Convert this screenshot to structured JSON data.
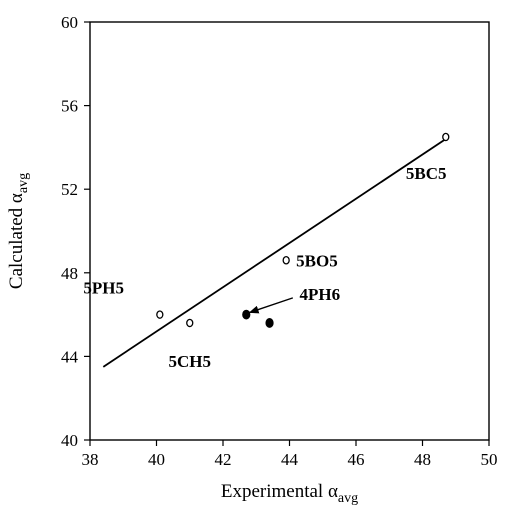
{
  "chart_data": {
    "type": "scatter",
    "xlabel": "Experimental α",
    "xlabel_sub": "avg",
    "ylabel": "Calculated α",
    "ylabel_sub": "avg",
    "xlim": [
      38,
      50
    ],
    "ylim": [
      40,
      60
    ],
    "x_ticks": [
      38,
      40,
      42,
      44,
      46,
      48,
      50
    ],
    "y_ticks": [
      40,
      44,
      48,
      52,
      56,
      60
    ],
    "grid": false,
    "legend": "none",
    "series": [
      {
        "marker": "open-circle",
        "points": [
          {
            "x": 40.1,
            "y": 46.0
          },
          {
            "x": 41.0,
            "y": 45.6
          },
          {
            "x": 43.9,
            "y": 48.6
          },
          {
            "x": 48.7,
            "y": 54.5
          }
        ]
      },
      {
        "marker": "filled-circle",
        "points": [
          {
            "x": 42.7,
            "y": 46.0
          },
          {
            "x": 43.4,
            "y": 45.6
          }
        ]
      }
    ],
    "fit_line": {
      "x1": 38.4,
      "y1": 43.5,
      "x2": 48.7,
      "y2": 54.4
    },
    "annotations": [
      {
        "text": "5PH5",
        "x": 37.8,
        "y": 47.0,
        "anchor": "start"
      },
      {
        "text": "5CH5",
        "x": 41.0,
        "y": 43.5,
        "anchor": "middle"
      },
      {
        "text": "5BO5",
        "x": 44.2,
        "y": 48.3,
        "anchor": "start"
      },
      {
        "text": "4PH6",
        "x": 44.3,
        "y": 46.7,
        "anchor": "start"
      },
      {
        "text": "5BC5",
        "x": 47.5,
        "y": 52.5,
        "anchor": "start"
      }
    ],
    "arrow": {
      "from": {
        "x": 44.1,
        "y": 46.8
      },
      "to": {
        "x": 42.8,
        "y": 46.1
      }
    }
  }
}
